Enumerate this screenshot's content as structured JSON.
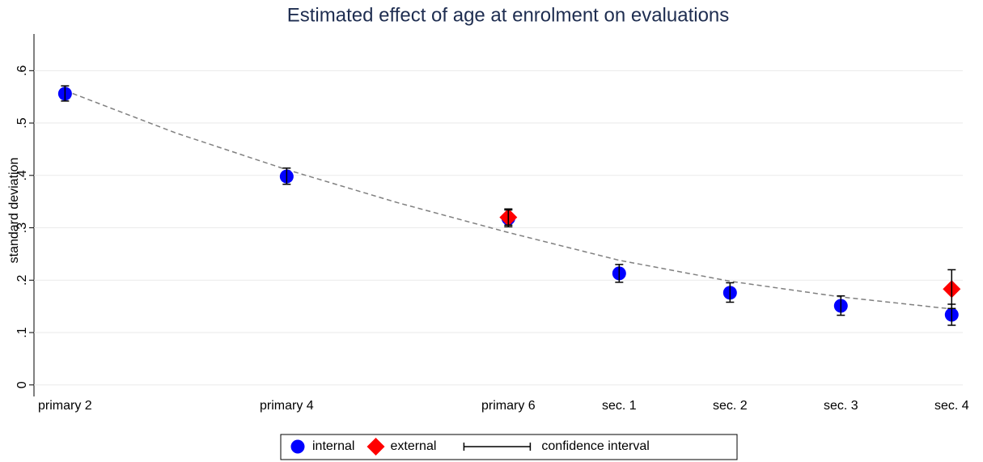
{
  "chart_data": {
    "type": "scatter",
    "title": "Estimated effect of age at enrolment on evaluations",
    "y_label": "standard deviation",
    "xlim": [
      1.72,
      10.1
    ],
    "xticks": [
      {
        "value": 2,
        "label": "primary 2"
      },
      {
        "value": 4,
        "label": "primary 4"
      },
      {
        "value": 6,
        "label": "primary 6"
      },
      {
        "value": 7,
        "label": "sec. 1"
      },
      {
        "value": 8,
        "label": "sec. 2"
      },
      {
        "value": 9,
        "label": "sec. 3"
      },
      {
        "value": 10,
        "label": "sec. 4"
      }
    ],
    "ylim": [
      -0.022,
      0.67
    ],
    "yticks": [
      0,
      {
        "value": 0.1,
        "label": ".1"
      },
      {
        "value": 0.2,
        "label": ".2"
      },
      {
        "value": 0.3,
        "label": ".3"
      },
      {
        "value": 0.4,
        "label": ".4"
      },
      {
        "value": 0.5,
        "label": ".5"
      },
      {
        "value": 0.6,
        "label": ".6"
      }
    ],
    "grid": true,
    "series": [
      {
        "name": "internal",
        "color": "#0000ff",
        "marker": "circle",
        "x": [
          2,
          4,
          6,
          7,
          8,
          9,
          10
        ],
        "values": [
          0.556,
          0.398,
          0.318,
          0.213,
          0.176,
          0.151,
          0.134
        ],
        "low": [
          0.542,
          0.383,
          0.302,
          0.196,
          0.158,
          0.133,
          0.114
        ],
        "high": [
          0.571,
          0.414,
          0.334,
          0.23,
          0.195,
          0.17,
          0.154
        ]
      },
      {
        "name": "external",
        "color": "#ff0000",
        "marker": "diamond",
        "x": [
          6,
          10
        ],
        "values": [
          0.32,
          0.183
        ],
        "low": [
          0.305,
          0.146
        ],
        "high": [
          0.336,
          0.22
        ]
      }
    ],
    "fit": {
      "color": "#808080",
      "x": [
        2,
        3,
        4,
        5,
        6,
        7,
        8,
        9,
        10
      ],
      "values": [
        0.562,
        0.481,
        0.411,
        0.348,
        0.291,
        0.238,
        0.198,
        0.168,
        0.145
      ]
    },
    "ci_legend": "confidence interval"
  }
}
